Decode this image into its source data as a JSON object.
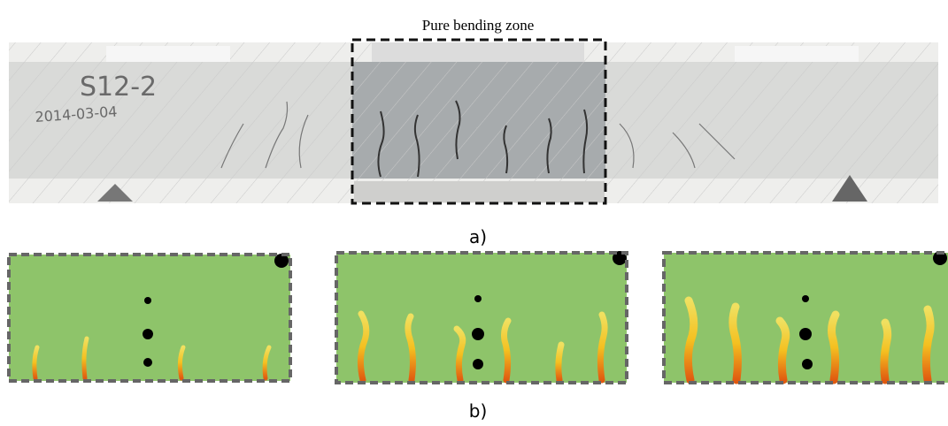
{
  "figure": {
    "zone_label": "Pure bending zone",
    "specimen_id": "S12-2",
    "date": "2014-03-04",
    "caption_a": "a)",
    "caption_b": "b)"
  }
}
